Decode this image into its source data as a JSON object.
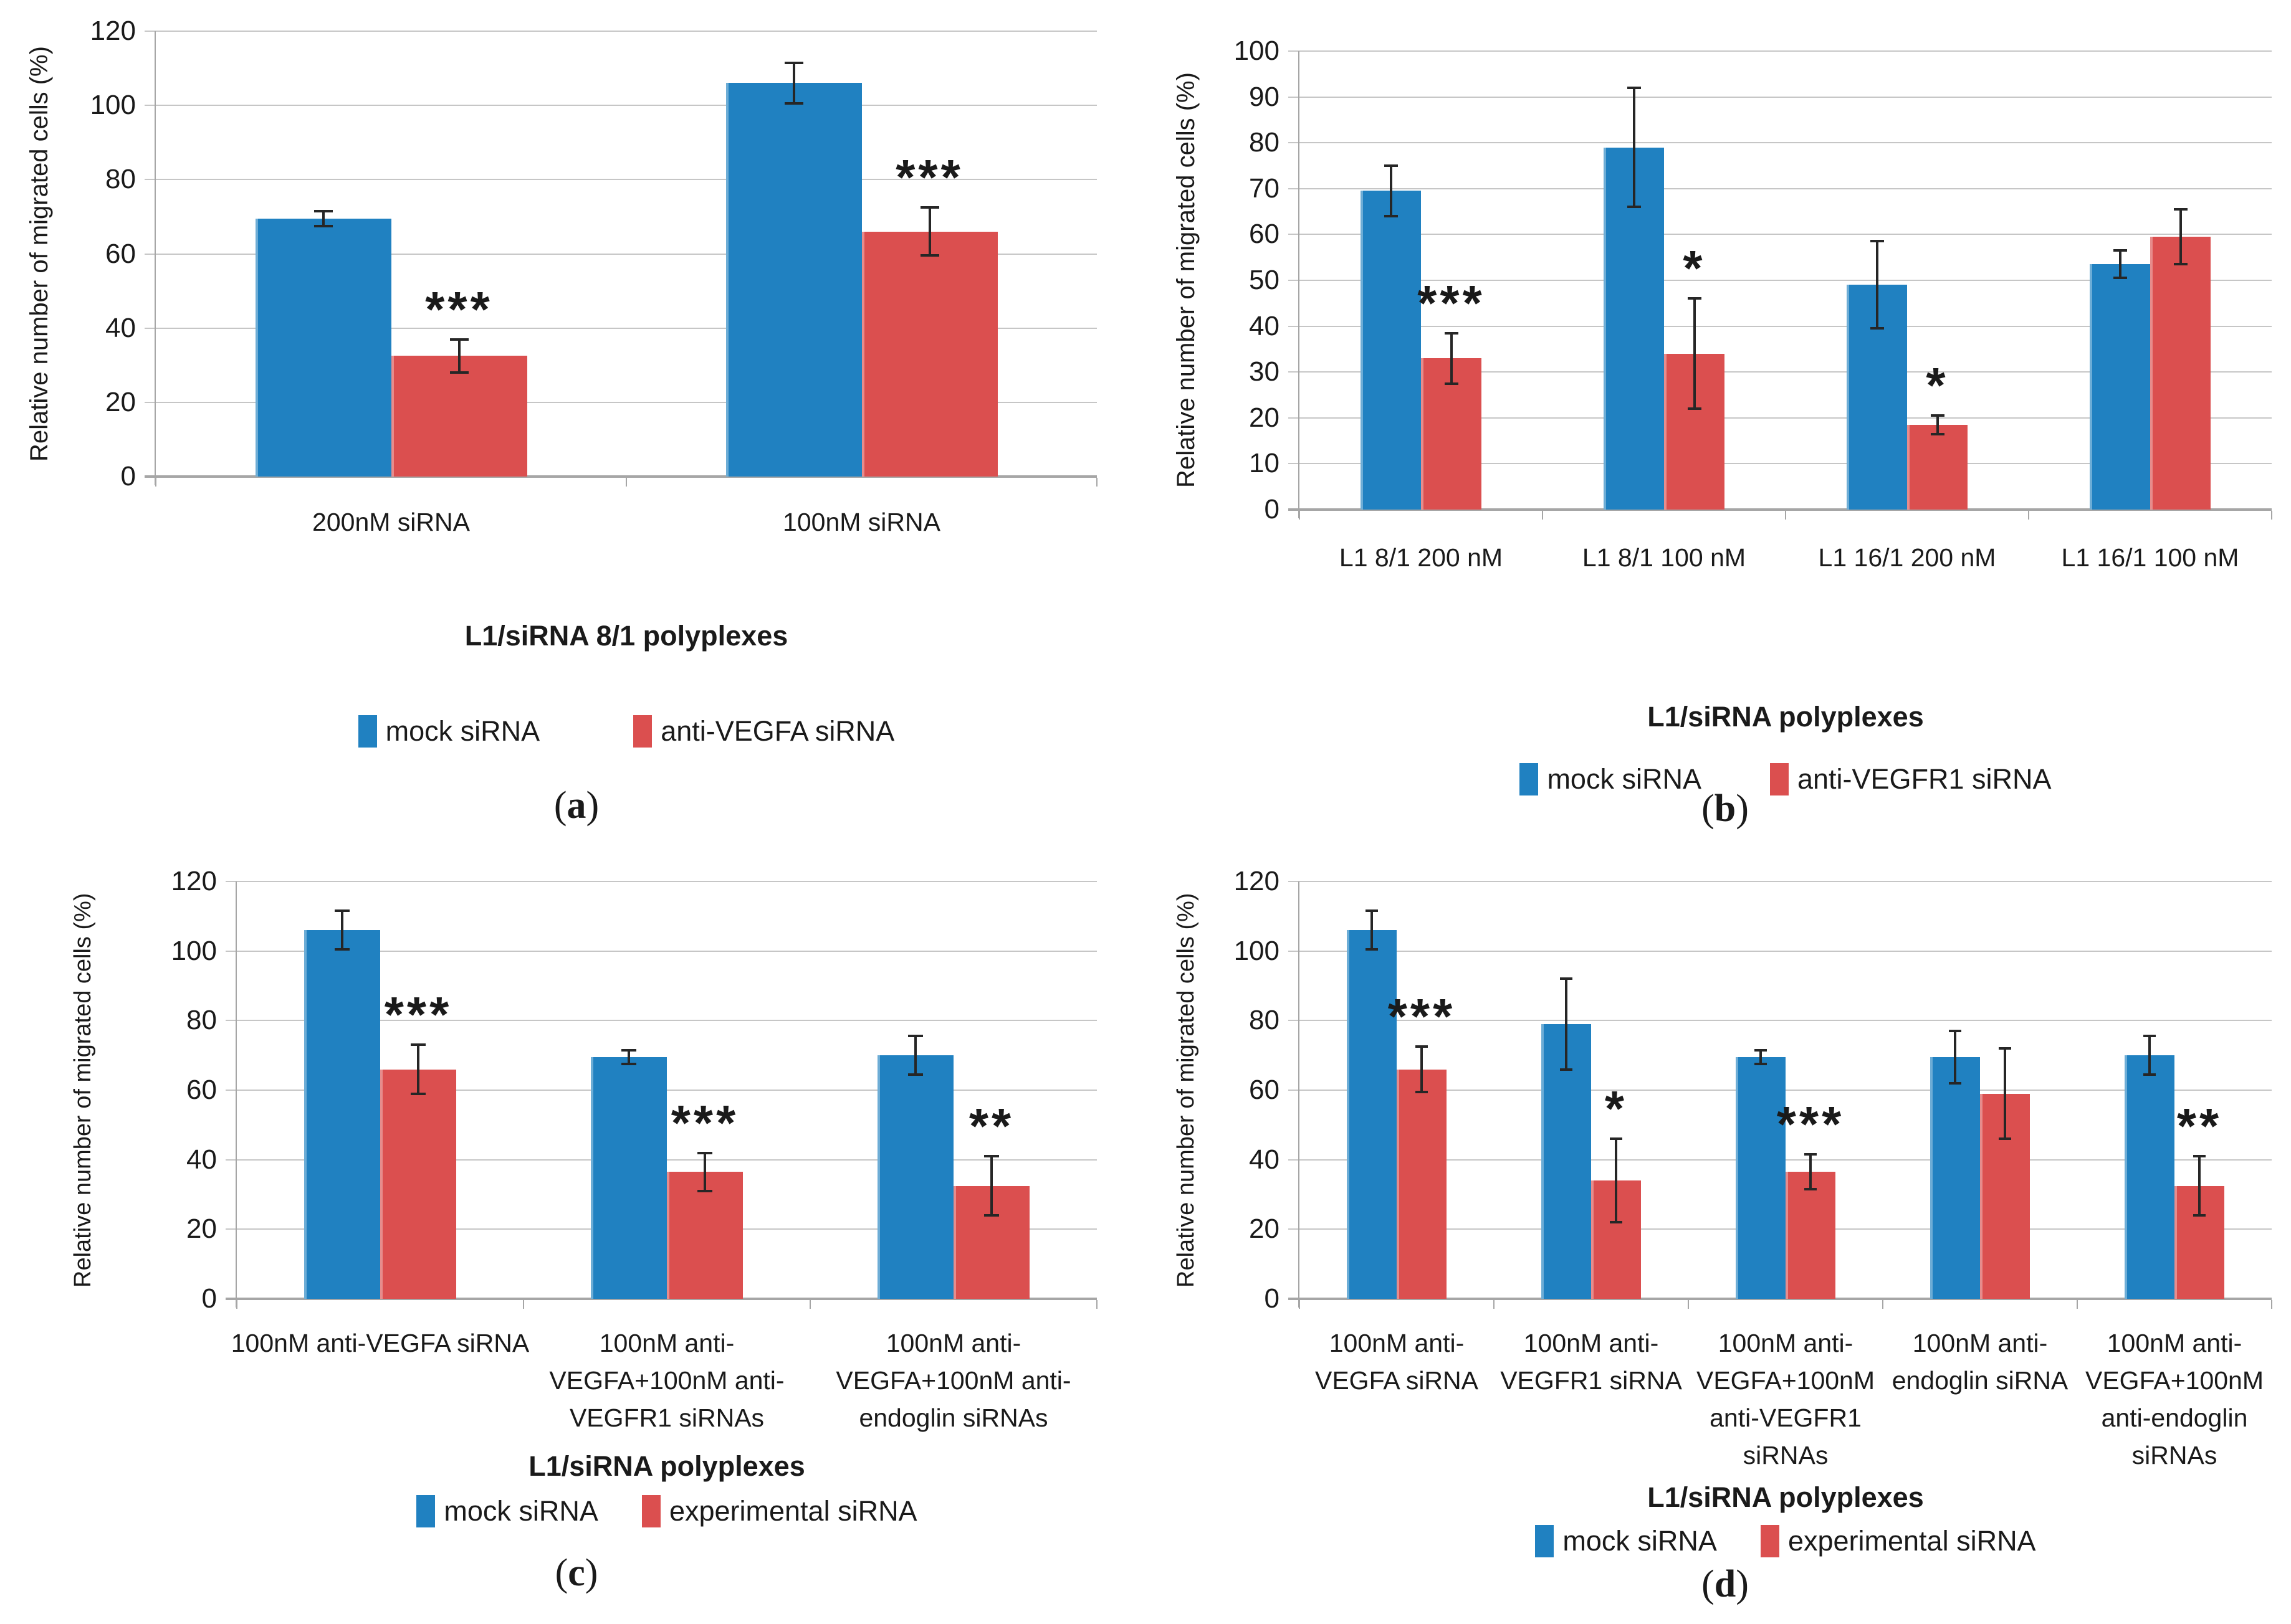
{
  "colors": {
    "mock_blue": "#2081C1",
    "experimental_red": "#DB4F4F",
    "gridline": "#C6C6C6",
    "axis": "#A6A6A6",
    "error_bar": "#262626",
    "text": "#1A1A1A"
  },
  "chart_data": [
    {
      "id": "a",
      "type": "bar",
      "caption": "(a)",
      "ylabel": "Relative number of migrated cells (%)",
      "xlabel": "L1/siRNA 8/1 polyplexes",
      "ylim": [
        0,
        120
      ],
      "ytick_step": 20,
      "grid": true,
      "legend_position": "bottom",
      "categories": [
        "200nM siRNA",
        "100nM siRNA"
      ],
      "category_lines": [
        [
          "200nM siRNA"
        ],
        [
          "100nM siRNA"
        ]
      ],
      "series": [
        {
          "name": "mock siRNA",
          "color": "#2081C1",
          "values": [
            69.5,
            106
          ],
          "errors": [
            2,
            5.5
          ]
        },
        {
          "name": "anti-VEGFA siRNA",
          "color": "#DB4F4F",
          "values": [
            32.5,
            66
          ],
          "errors": [
            4.5,
            6.5
          ]
        }
      ],
      "significance": [
        "***",
        "***"
      ]
    },
    {
      "id": "b",
      "type": "bar",
      "caption": "(b)",
      "ylabel": "Relative number of migrated cells (%)",
      "xlabel": "L1/siRNA polyplexes",
      "ylim": [
        0,
        100
      ],
      "ytick_step": 10,
      "grid": true,
      "legend_position": "bottom",
      "categories": [
        "L1 8/1 200 nM",
        "L1 8/1 100 nM",
        "L1 16/1 200 nM",
        "L1 16/1 100 nM"
      ],
      "category_lines": [
        [
          "L1 8/1 200 nM"
        ],
        [
          "L1 8/1 100 nM"
        ],
        [
          "L1 16/1 200 nM"
        ],
        [
          "L1 16/1 100 nM"
        ]
      ],
      "series": [
        {
          "name": "mock siRNA",
          "color": "#2081C1",
          "values": [
            69.5,
            79,
            49,
            53.5
          ],
          "errors": [
            5.5,
            13,
            9.5,
            3
          ]
        },
        {
          "name": "anti-VEGFR1 siRNA",
          "color": "#DB4F4F",
          "values": [
            33,
            34,
            18.5,
            59.5
          ],
          "errors": [
            5.5,
            12,
            2,
            6
          ]
        }
      ],
      "significance": [
        "***",
        "*",
        "*",
        ""
      ]
    },
    {
      "id": "c",
      "type": "bar",
      "caption": "(c)",
      "ylabel": "Relative number of migrated cells (%)",
      "xlabel": "L1/siRNA polyplexes",
      "ylim": [
        0,
        120
      ],
      "ytick_step": 20,
      "grid": true,
      "legend_position": "bottom",
      "categories": [
        "100nM anti-VEGFA siRNA",
        "100nM anti-VEGFA+100nM anti-VEGFR1 siRNAs",
        "100nM anti-VEGFA+100nM anti-endoglin siRNAs"
      ],
      "category_lines": [
        [
          "100nM anti-VEGFA siRNA"
        ],
        [
          "100nM anti-",
          "VEGFA+100nM anti-",
          "VEGFR1 siRNAs"
        ],
        [
          "100nM anti-",
          "VEGFA+100nM anti-",
          "endoglin siRNAs"
        ]
      ],
      "series": [
        {
          "name": "mock siRNA",
          "color": "#2081C1",
          "values": [
            106,
            69.5,
            70
          ],
          "errors": [
            5.5,
            2,
            5.5
          ]
        },
        {
          "name": "experimental siRNA",
          "color": "#DB4F4F",
          "values": [
            66,
            36.5,
            32.5
          ],
          "errors": [
            7,
            5.5,
            8.5
          ]
        }
      ],
      "significance": [
        "***",
        "***",
        "**"
      ]
    },
    {
      "id": "d",
      "type": "bar",
      "caption": "(d)",
      "ylabel": "Relative number of migrated cells (%)",
      "xlabel": "L1/siRNA polyplexes",
      "ylim": [
        0,
        120
      ],
      "ytick_step": 20,
      "grid": true,
      "legend_position": "bottom",
      "categories": [
        "100nM anti-VEGFA siRNA",
        "100nM anti-VEGFR1 siRNA",
        "100nM anti-VEGFA+100nM anti-VEGFR1 siRNAs",
        "100nM anti-endoglin siRNA",
        "100nM anti-VEGFA+100nM anti-endoglin siRNAs"
      ],
      "category_lines": [
        [
          "100nM anti-",
          "VEGFA siRNA"
        ],
        [
          "100nM anti-",
          "VEGFR1 siRNA"
        ],
        [
          "100nM anti-",
          "VEGFA+100nM",
          "anti-VEGFR1",
          "siRNAs"
        ],
        [
          "100nM anti-",
          "endoglin siRNA"
        ],
        [
          "100nM anti-",
          "VEGFA+100nM",
          "anti-endoglin",
          "siRNAs"
        ]
      ],
      "series": [
        {
          "name": "mock siRNA",
          "color": "#2081C1",
          "values": [
            106,
            79,
            69.5,
            69.5,
            70
          ],
          "errors": [
            5.5,
            13,
            2,
            7.5,
            5.5
          ]
        },
        {
          "name": "experimental siRNA",
          "color": "#DB4F4F",
          "values": [
            66,
            34,
            36.5,
            59,
            32.5
          ],
          "errors": [
            6.5,
            12,
            5,
            13,
            8.5
          ]
        }
      ],
      "significance": [
        "***",
        "*",
        "***",
        "",
        "**"
      ]
    }
  ]
}
